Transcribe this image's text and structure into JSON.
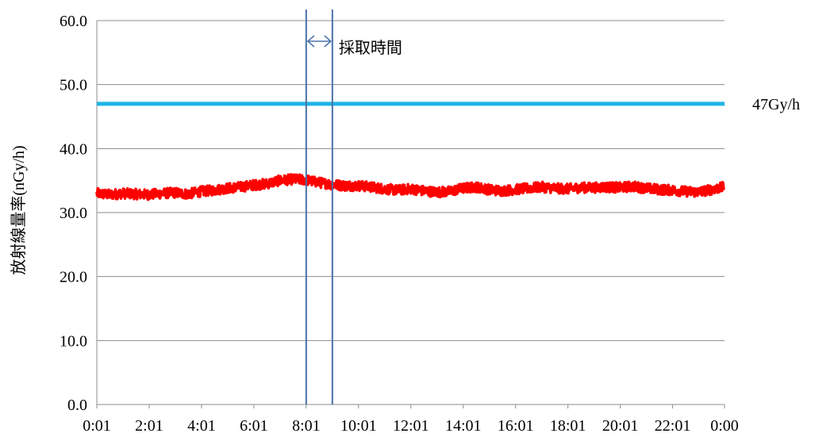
{
  "chart_data": {
    "type": "line",
    "title": "",
    "xlabel": "",
    "ylabel": "放射線量率(nGy/h)",
    "ylim": [
      0,
      60
    ],
    "yticks": [
      "0.0",
      "10.0",
      "20.0",
      "30.0",
      "40.0",
      "50.0",
      "60.0"
    ],
    "xlim_minutes": [
      1,
      1440
    ],
    "xticks": [
      "0:01",
      "2:01",
      "4:01",
      "6:01",
      "8:01",
      "10:01",
      "12:01",
      "14:01",
      "16:01",
      "18:01",
      "20:01",
      "22:01",
      "0:00"
    ],
    "grid": true,
    "series": [
      {
        "name": "",
        "color": "#ff0000",
        "x": [
          "0:01",
          "0:30",
          "1:00",
          "1:30",
          "2:00",
          "2:30",
          "3:00",
          "3:30",
          "4:00",
          "4:30",
          "5:00",
          "5:30",
          "6:00",
          "6:30",
          "7:00",
          "7:30",
          "8:00",
          "8:30",
          "9:00",
          "9:30",
          "10:00",
          "10:30",
          "11:00",
          "11:30",
          "12:00",
          "12:30",
          "13:00",
          "13:30",
          "14:00",
          "14:30",
          "15:00",
          "15:30",
          "16:00",
          "16:30",
          "17:00",
          "17:30",
          "18:00",
          "18:30",
          "19:00",
          "19:30",
          "20:00",
          "20:30",
          "21:00",
          "21:30",
          "22:00",
          "22:30",
          "23:00",
          "23:30",
          "0:00"
        ],
        "y": [
          33.0,
          32.8,
          33.0,
          32.9,
          32.8,
          33.0,
          33.1,
          32.9,
          33.3,
          33.5,
          33.8,
          34.0,
          34.3,
          34.5,
          35.0,
          35.2,
          35.1,
          34.7,
          34.4,
          34.2,
          34.2,
          34.0,
          33.7,
          33.5,
          33.7,
          33.4,
          33.2,
          33.3,
          33.8,
          34.0,
          33.6,
          33.4,
          33.6,
          33.8,
          34.0,
          33.8,
          33.7,
          33.9,
          33.9,
          34.0,
          33.9,
          34.1,
          33.8,
          33.6,
          33.5,
          33.3,
          33.2,
          33.6,
          34.0
        ]
      },
      {
        "name": "47Gy/h",
        "color": "#1fb4e6",
        "x": [
          "0:01",
          "0:00"
        ],
        "y": [
          47.0,
          47.0
        ]
      }
    ],
    "reference_label": "47Gy/h",
    "annotation": {
      "text": "採取時間",
      "from": "8:01",
      "to": "9:01",
      "color": "#4a72a8"
    }
  }
}
